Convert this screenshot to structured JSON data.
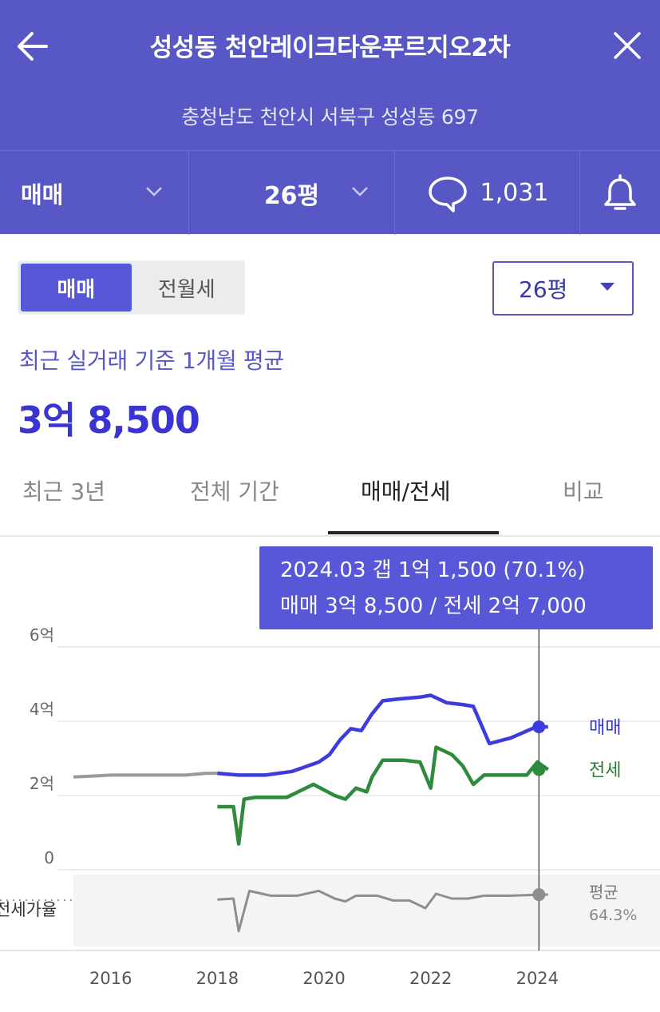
{
  "header": {
    "title": "성성동 천안레이크타운푸르지오2차",
    "address": "충청남도 천안시 서북구 성성동 697",
    "trade_type": "매매",
    "size": "26평",
    "comment_count": "1,031"
  },
  "toggle": {
    "sale": "매매",
    "lease": "전월세",
    "selected": "매매"
  },
  "size_select": {
    "value": "26평"
  },
  "summary": {
    "label": "최근 실거래 기준 1개월 평균",
    "price": "3억 8,500"
  },
  "period_tabs": [
    {
      "label": "최근 3년"
    },
    {
      "label": "전체 기간"
    },
    {
      "label": "매매/전세"
    },
    {
      "label": "비교"
    }
  ],
  "active_tab": "매매/전세",
  "tooltip": {
    "line1": "2024.03  갭 1억 1,500 (70.1%)",
    "line2": "매매 3억 8,500 / 전세 2억 7,000"
  },
  "colors": {
    "header": "#5757c6",
    "accent": "#5757d8",
    "sale_line": "#3c3cdc",
    "lease_line": "#2e8b3c",
    "old_sale_line": "#9a9a9a",
    "ratio_line": "#8e8e8e"
  },
  "chart_data": {
    "type": "line",
    "unit": "억",
    "y_ticks": [
      "6억",
      "4억",
      "2억",
      "0"
    ],
    "y_tick_values": [
      6,
      4,
      2,
      0
    ],
    "ylim": [
      0,
      6.6
    ],
    "x_ticks": [
      "2016",
      "2018",
      "2020",
      "2022",
      "2024"
    ],
    "x_tick_values": [
      2016,
      2018,
      2020,
      2022,
      2024
    ],
    "xlim": [
      2015.3,
      2026.3
    ],
    "legend": {
      "sale": "매매",
      "lease": "전세",
      "ratio": "평균",
      "ratio_value": "64.3%"
    },
    "ratio_axis_label": "전세가율",
    "series": [
      {
        "name": "매매",
        "x": [
          2015.3,
          2016.0,
          2016.8,
          2017.4,
          2017.8,
          2018.0,
          2018.4,
          2018.9,
          2019.4,
          2019.7,
          2019.9,
          2020.1,
          2020.3,
          2020.5,
          2020.7,
          2020.9,
          2021.1,
          2021.4,
          2021.8,
          2022.0,
          2022.3,
          2022.6,
          2022.8,
          2023.1,
          2023.5,
          2023.9,
          2024.0,
          2024.2
        ],
        "y": [
          2.5,
          2.55,
          2.55,
          2.55,
          2.6,
          2.6,
          2.55,
          2.55,
          2.65,
          2.8,
          2.9,
          3.1,
          3.5,
          3.8,
          3.75,
          4.2,
          4.55,
          4.6,
          4.65,
          4.7,
          4.5,
          4.45,
          4.4,
          3.4,
          3.55,
          3.8,
          3.85,
          3.85
        ]
      },
      {
        "name": "전세",
        "x": [
          2018.0,
          2018.3,
          2018.4,
          2018.5,
          2018.7,
          2019.3,
          2019.8,
          2020.2,
          2020.4,
          2020.6,
          2020.8,
          2020.9,
          2021.1,
          2021.5,
          2021.8,
          2022.0,
          2022.1,
          2022.4,
          2022.6,
          2022.8,
          2023.0,
          2023.4,
          2023.8,
          2024.0,
          2024.2
        ],
        "y": [
          1.7,
          1.7,
          0.7,
          1.9,
          1.95,
          1.95,
          2.3,
          2.0,
          1.9,
          2.2,
          2.1,
          2.5,
          2.95,
          2.95,
          2.9,
          2.2,
          3.3,
          3.1,
          2.8,
          2.3,
          2.55,
          2.55,
          2.55,
          2.9,
          2.7
        ]
      }
    ],
    "ratio_series": {
      "name": "평균",
      "x": [
        2018.0,
        2018.3,
        2018.4,
        2018.6,
        2019.0,
        2019.5,
        2019.9,
        2020.2,
        2020.4,
        2020.6,
        2021.0,
        2021.3,
        2021.6,
        2021.9,
        2022.1,
        2022.4,
        2022.7,
        2023.0,
        2023.5,
        2024.0,
        2024.2
      ],
      "y": [
        65,
        66,
        32,
        74,
        69,
        69,
        74,
        66,
        63,
        69,
        69,
        64,
        64,
        56,
        71,
        66,
        66,
        69,
        69,
        70,
        70.1
      ],
      "reference": 64.3
    },
    "highlight": {
      "x": 2024.03,
      "sale": 3.85,
      "lease": 2.7,
      "ratio": 70.1
    }
  }
}
